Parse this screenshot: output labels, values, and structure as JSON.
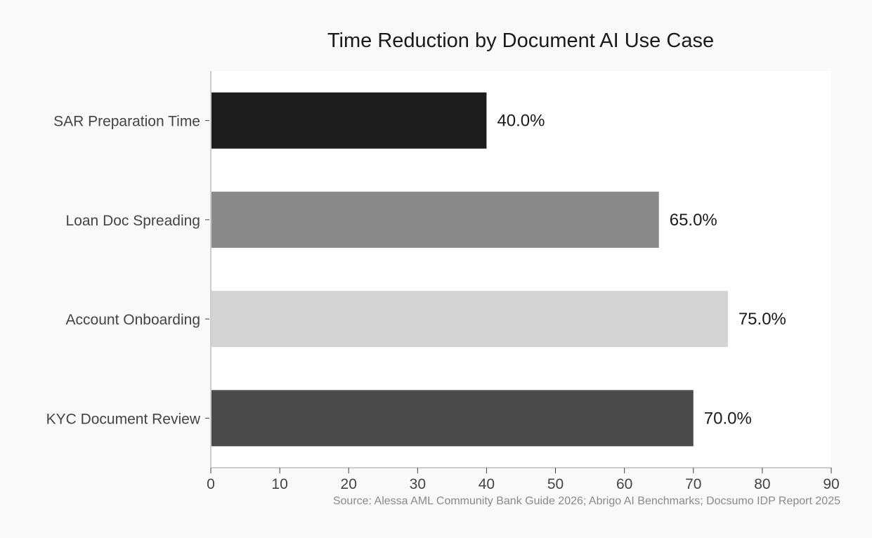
{
  "chart_data": {
    "type": "bar",
    "orientation": "horizontal",
    "title": "Time Reduction by Document AI Use Case",
    "xlabel": "",
    "ylabel": "",
    "categories": [
      "SAR Preparation Time",
      "Loan Doc Spreading",
      "Account Onboarding",
      "KYC Document Review"
    ],
    "values": [
      40.0,
      65.0,
      75.0,
      70.0
    ],
    "value_labels": [
      "40.0%",
      "65.0%",
      "75.0%",
      "70.0%"
    ],
    "bar_colors": [
      "#1c1c1c",
      "#8a8a8a",
      "#d4d4d4",
      "#4a4a4a"
    ],
    "xlim": [
      0,
      90
    ],
    "xticks": [
      0,
      10,
      20,
      30,
      40,
      50,
      60,
      70,
      80,
      90
    ],
    "grid": false,
    "legend": "none",
    "source": "Source: Alessa AML Community Bank Guide 2026; Abrigo AI Benchmarks; Docsumo IDP Report 2025",
    "colors": {
      "background": "#f9f9f9",
      "plot_background": "#ffffff",
      "axis": "#cccccc",
      "tick_text": "#444444",
      "title_text": "#1a1a1a",
      "source_text": "#8a8a8a"
    }
  }
}
